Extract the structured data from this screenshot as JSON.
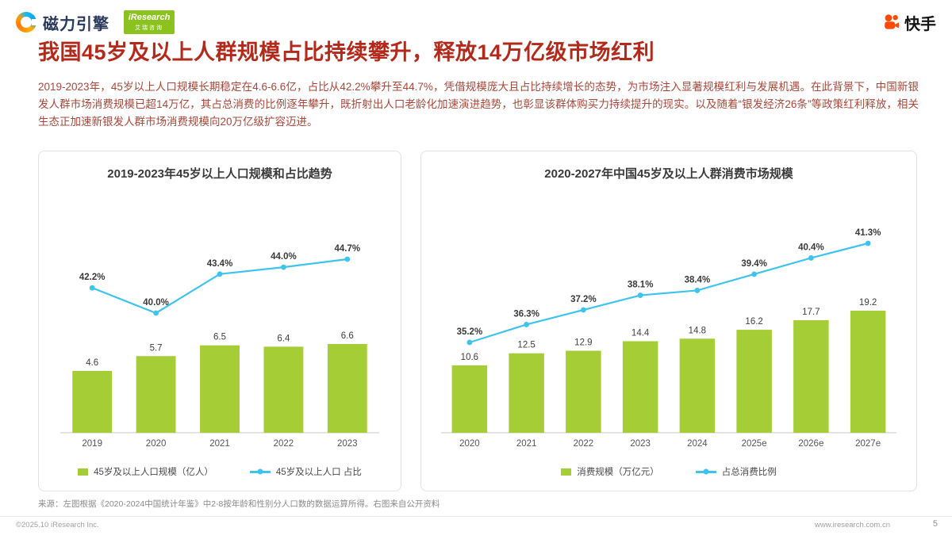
{
  "header": {
    "brand_left": "磁力引擎",
    "iresearch_logo": "iResearch",
    "iresearch_sub": "艾瑞咨询",
    "brand_right": "快手"
  },
  "title": "我国45岁及以上人群规模占比持续攀升，释放14万亿级市场红利",
  "body": "2019-2023年，45岁以上人口规模长期稳定在4.6-6.6亿，占比从42.2%攀升至44.7%，凭借规模庞大且占比持续增长的态势，为市场注入显著规模红利与发展机遇。在此背景下，中国新银发人群市场消费规模已超14万亿，其占总消费的比例逐年攀升，既折射出人口老龄化加速演进趋势，也彰显该群体购买力持续提升的现实。以及随着“银发经济26条”等政策红利释放，相关生态正加速新银发人群市场消费规模向20万亿级扩容迈进。",
  "colors": {
    "bar": "#A5CD35",
    "line": "#3EC3EF",
    "title_text": "#B12A1B",
    "body_text": "#A5483A"
  },
  "chart_data": [
    {
      "type": "bar",
      "title": "2019-2023年45岁以上人口规模和占比趋势",
      "categories": [
        "2019",
        "2020",
        "2021",
        "2022",
        "2023"
      ],
      "series": [
        {
          "name": "45岁及以上人口规模（亿人）",
          "type": "bar",
          "values": [
            4.6,
            5.7,
            6.5,
            6.4,
            6.6
          ]
        },
        {
          "name": "45岁及以上人口 占比",
          "type": "line",
          "values": [
            42.2,
            40.0,
            43.4,
            44.0,
            44.7
          ],
          "unit": "%"
        }
      ],
      "legend_position": "bottom",
      "grid": false
    },
    {
      "type": "bar",
      "title": "2020-2027年中国45岁及以上人群消费市场规模",
      "categories": [
        "2020",
        "2021",
        "2022",
        "2023",
        "2024",
        "2025e",
        "2026e",
        "2027e"
      ],
      "series": [
        {
          "name": "消费规模（万亿元）",
          "type": "bar",
          "values": [
            10.6,
            12.5,
            12.9,
            14.4,
            14.8,
            16.2,
            17.7,
            19.2
          ]
        },
        {
          "name": "占总消费比例",
          "type": "line",
          "values": [
            35.2,
            36.3,
            37.2,
            38.1,
            38.4,
            39.4,
            40.4,
            41.3
          ],
          "unit": "%"
        }
      ],
      "legend_position": "bottom",
      "grid": false
    }
  ],
  "footer": {
    "source": "来源：左图根据《2020-2024中国统计年鉴》中2-8按年龄和性别分人口数的数据运算所得。右图来自公开资料",
    "copyright": "©2025.10 iResearch Inc.",
    "website": "www.iresearch.com.cn",
    "page": "5"
  }
}
